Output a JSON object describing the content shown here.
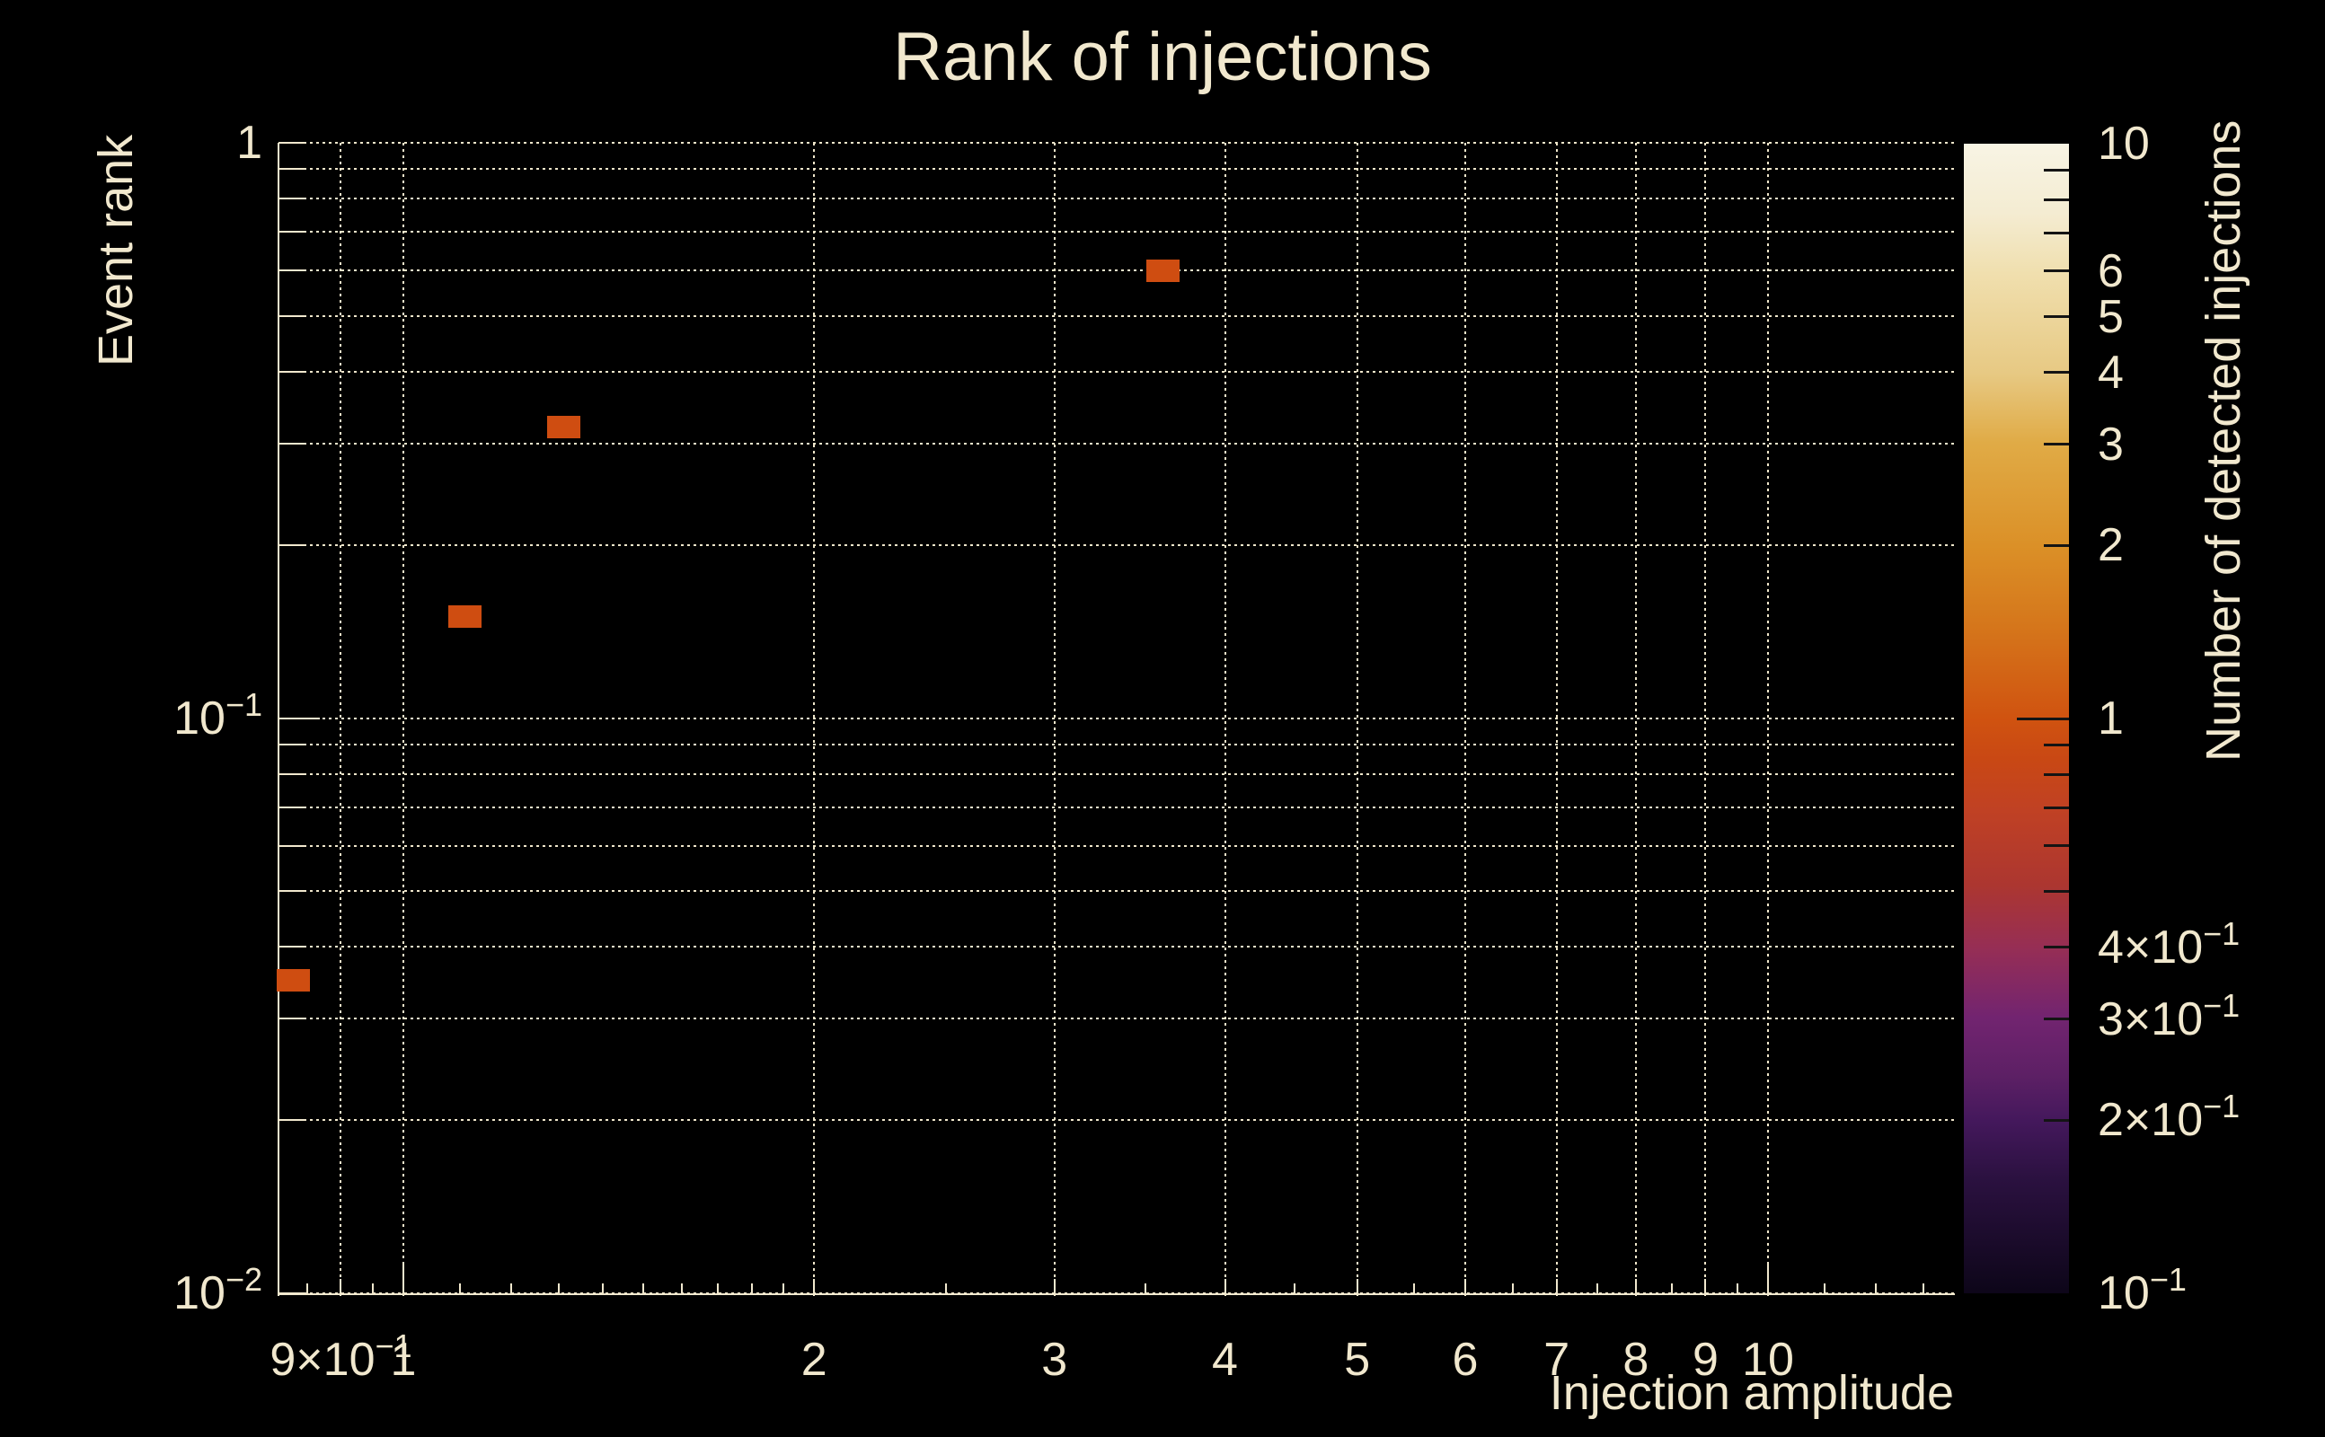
{
  "title": "Rank of injections",
  "colors": {
    "background": "#000000",
    "text": "#F1E8CE",
    "grid": "#EFE6CB",
    "bin": "#CF4D11",
    "colorbar_tick": "#141414"
  },
  "chart_data": {
    "type": "heatmap",
    "title": "Rank of injections",
    "xlabel": "Injection amplitude",
    "ylabel": "Event rank",
    "zlabel": "Number of detected injections",
    "x_scale": "log",
    "y_scale": "log",
    "z_scale": "log",
    "xlim": [
      0.81,
      13.7
    ],
    "ylim": [
      0.01,
      1
    ],
    "zlim": [
      0.1,
      10
    ],
    "grid": true,
    "legend_position": "colorbar-right",
    "points": [
      {
        "x": 0.83,
        "y": 0.035,
        "value": 1
      },
      {
        "x": 1.11,
        "y": 0.15,
        "value": 1
      },
      {
        "x": 1.31,
        "y": 0.32,
        "value": 1
      },
      {
        "x": 3.6,
        "y": 0.6,
        "value": 1
      }
    ],
    "x_ticks": [
      {
        "v": 0.9,
        "b": "9×10",
        "s": "−1"
      },
      {
        "v": 1,
        "b": "1"
      },
      {
        "v": 2,
        "b": "2"
      },
      {
        "v": 3,
        "b": "3"
      },
      {
        "v": 4,
        "b": "4"
      },
      {
        "v": 5,
        "b": "5"
      },
      {
        "v": 6,
        "b": "6"
      },
      {
        "v": 7,
        "b": "7"
      },
      {
        "v": 8,
        "b": "8"
      },
      {
        "v": 9,
        "b": "9"
      },
      {
        "v": 10,
        "b": "10"
      }
    ],
    "y_ticks": [
      {
        "v": 1,
        "b": "1"
      },
      {
        "v": 0.1,
        "b": "10",
        "s": "−1"
      },
      {
        "v": 0.01,
        "b": "10",
        "s": "−2"
      }
    ],
    "x_gridlines": [
      0.9,
      1,
      2,
      3,
      4,
      5,
      6,
      7,
      8,
      9,
      10
    ],
    "y_gridlines": [
      1,
      0.9,
      0.8,
      0.7,
      0.6,
      0.5,
      0.4,
      0.3,
      0.2,
      0.1,
      0.09,
      0.08,
      0.07,
      0.06,
      0.05,
      0.04,
      0.03,
      0.02,
      0.01
    ],
    "x_minor_ticks": [
      0.85,
      0.95,
      1.1,
      1.2,
      1.3,
      1.4,
      1.5,
      1.6,
      1.7,
      1.8,
      1.9,
      2.5,
      3.5,
      4.5,
      5.5,
      6.5,
      7.5,
      8.5,
      9.5,
      11,
      12,
      13
    ],
    "colorbar": {
      "tick_values": [
        9,
        8,
        7,
        6,
        5,
        4,
        3,
        2,
        1,
        0.9,
        0.8,
        0.7,
        0.6,
        0.5,
        0.4,
        0.3,
        0.2
      ],
      "labels": [
        {
          "v": 10,
          "b": "10"
        },
        {
          "v": 6,
          "b": "6"
        },
        {
          "v": 5,
          "b": "5"
        },
        {
          "v": 4,
          "b": "4"
        },
        {
          "v": 3,
          "b": "3"
        },
        {
          "v": 2,
          "b": "2"
        },
        {
          "v": 1,
          "b": "1"
        },
        {
          "v": 0.4,
          "b": "4×10",
          "s": "−1"
        },
        {
          "v": 0.3,
          "b": "3×10",
          "s": "−1"
        },
        {
          "v": 0.2,
          "b": "2×10",
          "s": "−1"
        },
        {
          "v": 0.1,
          "b": "10",
          "s": "−1"
        }
      ],
      "gradient": [
        {
          "p": 0,
          "c": "#F8F4E4"
        },
        {
          "p": 6,
          "c": "#F4ECD2"
        },
        {
          "p": 11.3,
          "c": "#F0DFAE"
        },
        {
          "p": 20,
          "c": "#E7C983"
        },
        {
          "p": 26,
          "c": "#E0AB46"
        },
        {
          "p": 35,
          "c": "#DB9027"
        },
        {
          "p": 42,
          "c": "#D5761B"
        },
        {
          "p": 50,
          "c": "#D05310"
        },
        {
          "p": 53.5,
          "c": "#C94814"
        },
        {
          "p": 58,
          "c": "#C04124"
        },
        {
          "p": 64.5,
          "c": "#AC3630"
        },
        {
          "p": 70,
          "c": "#962E55"
        },
        {
          "p": 76,
          "c": "#722470"
        },
        {
          "p": 81,
          "c": "#5D2065"
        },
        {
          "p": 85,
          "c": "#44185C"
        },
        {
          "p": 90,
          "c": "#2B1140"
        },
        {
          "p": 100,
          "c": "#0D0619"
        }
      ]
    }
  }
}
